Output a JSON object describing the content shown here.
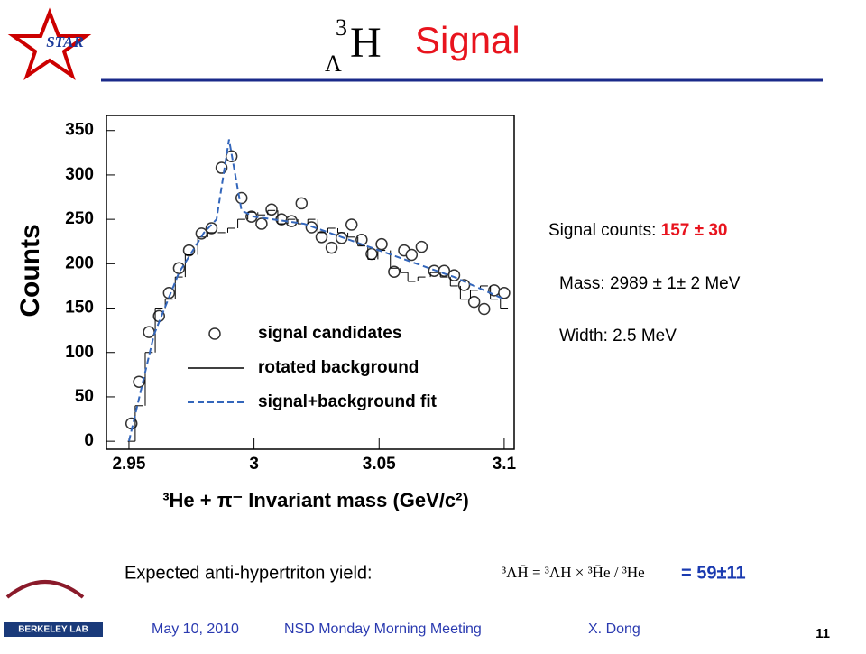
{
  "header": {
    "symbol_mass": "3",
    "symbol_sub": "Λ",
    "symbol_element": "H",
    "title": "Signal",
    "logo_text": "STAR"
  },
  "chart_data": {
    "type": "scatter",
    "x_label": "³He + π⁻ Invariant mass (GeV/c²)",
    "y_label": "Counts",
    "xlim": [
      2.941,
      3.104
    ],
    "ylim": [
      -9,
      367
    ],
    "xticks": [
      2.95,
      3,
      3.05,
      3.1
    ],
    "yticks": [
      0,
      50,
      100,
      150,
      200,
      250,
      300,
      350
    ],
    "legend": "center-right",
    "series": [
      {
        "name": "signal candidates",
        "kind": "points",
        "color": "#333333",
        "x": [
          2.951,
          2.954,
          2.958,
          2.962,
          2.966,
          2.97,
          2.974,
          2.979,
          2.983,
          2.987,
          2.991,
          2.995,
          2.999,
          3.003,
          3.007,
          3.011,
          3.015,
          3.019,
          3.023,
          3.027,
          3.031,
          3.035,
          3.039,
          3.043,
          3.047,
          3.051,
          3.056,
          3.06,
          3.063,
          3.067,
          3.072,
          3.076,
          3.08,
          3.084,
          3.088,
          3.092,
          3.096,
          3.1
        ],
        "values": [
          20,
          67,
          123,
          141,
          167,
          195,
          215,
          234,
          240,
          308,
          321,
          274,
          253,
          245,
          261,
          250,
          248,
          268,
          241,
          230,
          218,
          229,
          244,
          227,
          211,
          222,
          191,
          215,
          210,
          219,
          192,
          192,
          187,
          176,
          157,
          149,
          170,
          167
        ]
      },
      {
        "name": "rotated background",
        "kind": "step",
        "color": "#000000",
        "x": [
          2.951,
          2.954,
          2.958,
          2.962,
          2.966,
          2.97,
          2.974,
          2.979,
          2.983,
          2.987,
          2.991,
          2.995,
          2.999,
          3.003,
          3.007,
          3.011,
          3.015,
          3.019,
          3.023,
          3.027,
          3.031,
          3.035,
          3.039,
          3.043,
          3.047,
          3.051,
          3.056,
          3.06,
          3.063,
          3.067,
          3.072,
          3.076,
          3.08,
          3.084,
          3.088,
          3.092,
          3.096,
          3.1
        ],
        "values": [
          0,
          40,
          100,
          150,
          160,
          185,
          210,
          230,
          235,
          235,
          240,
          250,
          258,
          255,
          260,
          245,
          250,
          245,
          250,
          235,
          240,
          235,
          230,
          220,
          205,
          215,
          195,
          190,
          180,
          185,
          190,
          185,
          175,
          160,
          170,
          175,
          160,
          150
        ]
      },
      {
        "name": "signal+background fit",
        "kind": "dashed",
        "color": "#3366bb",
        "x": [
          2.95,
          2.955,
          2.96,
          2.97,
          2.98,
          2.985,
          2.99,
          2.995,
          3.0,
          3.02,
          3.04,
          3.06,
          3.08,
          3.1
        ],
        "values": [
          0,
          60,
          120,
          190,
          235,
          250,
          340,
          260,
          253,
          245,
          225,
          205,
          185,
          160
        ]
      }
    ]
  },
  "info": {
    "counts_label": "Signal counts: ",
    "counts_value": "157 ± 30",
    "mass": "Mass: 2989 ± 1± 2 MeV",
    "width": "Width: 2.5 MeV"
  },
  "yield": {
    "label": "Expected anti-hypertriton yield:",
    "formula": "³ΛH̄ = ³ΛH × ³H̄e / ³He",
    "result": "= 59±11"
  },
  "footer": {
    "date": "May 10, 2010",
    "meeting": "NSD Monday Morning Meeting",
    "author": "X. Dong",
    "page": "11",
    "lab": "BERKELEY LAB"
  }
}
